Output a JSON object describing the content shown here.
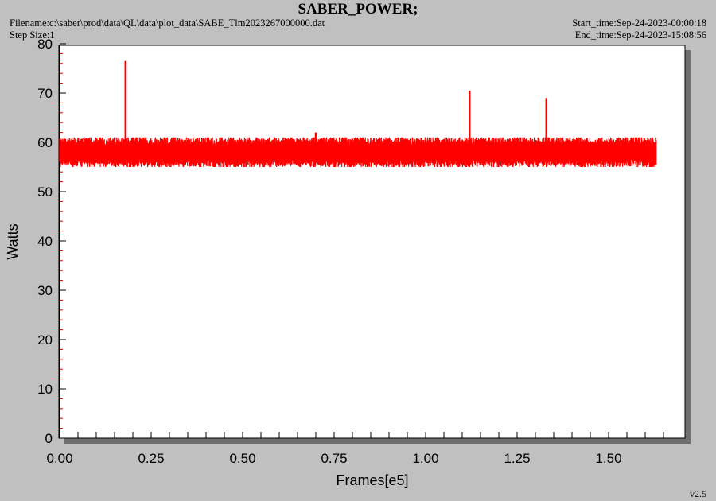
{
  "header": {
    "title": "SABER_POWER;",
    "filename": "Filename:c:\\saber\\prod\\data\\QL\\data\\plot_data\\SABE_Tlm2023267000000.dat",
    "step_size": "Step Size:1",
    "start_time": "Start_time:Sep-24-2023-00:00:18",
    "end_time": "End_time:Sep-24-2023-15:08:56"
  },
  "footer": {
    "version": "v2.5"
  },
  "chart_data": {
    "type": "line",
    "xlabel": "Frames[e5]",
    "ylabel": "Watts",
    "xlim": [
      0,
      1.7
    ],
    "ylim": [
      0,
      80
    ],
    "x_ticks": [
      "0.00",
      "0.25",
      "0.50",
      "0.75",
      "1.00",
      "1.25",
      "1.50"
    ],
    "y_ticks": [
      "0",
      "10",
      "20",
      "30",
      "40",
      "50",
      "60",
      "70",
      "80"
    ],
    "grid": false,
    "line_color": "#ff0000",
    "series": [
      {
        "x_range": [
          0.0,
          1.63
        ],
        "typical_min": 55.0,
        "typical_max": 61.0,
        "baseline": 58.0,
        "spikes": [
          {
            "x": 0.18,
            "y": 76.5
          },
          {
            "x": 0.7,
            "y": 62.0
          },
          {
            "x": 1.12,
            "y": 70.5
          },
          {
            "x": 1.33,
            "y": 69.0
          }
        ]
      }
    ]
  }
}
